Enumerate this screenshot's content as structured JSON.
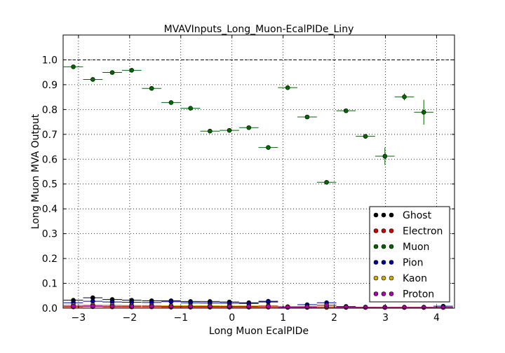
{
  "chart_data": {
    "type": "scatter",
    "title": "MVAVInputs_Long_Muon-EcalPIDe_Liny",
    "xlabel": "Long Muon EcalPIDe",
    "ylabel": "Long Muon MVA Output",
    "xlim": [
      -3.3,
      4.35
    ],
    "ylim": [
      0.0,
      1.1
    ],
    "xticks": [
      -3,
      -2,
      -1,
      0,
      1,
      2,
      3,
      4
    ],
    "xtick_labels": [
      "−3",
      "−2",
      "−1",
      "0",
      "1",
      "2",
      "3",
      "4"
    ],
    "yticks": [
      0.0,
      0.1,
      0.2,
      0.3,
      0.4,
      0.5,
      0.6,
      0.7,
      0.8,
      0.9,
      1.0
    ],
    "ytick_labels": [
      "0.0",
      "0.1",
      "0.2",
      "0.3",
      "0.4",
      "0.5",
      "0.6",
      "0.7",
      "0.8",
      "0.9",
      "1.0"
    ],
    "grid": true,
    "reference_line_y": 1.0,
    "legend_position": "lower-right",
    "bin_halfwidth": 0.19,
    "series": [
      {
        "name": "Ghost",
        "color": "#000000",
        "x": [
          -3.1,
          -2.72,
          -2.34,
          -1.96,
          -1.57,
          -1.19,
          -0.81,
          -0.43,
          -0.05,
          0.33,
          0.71
        ],
        "y": [
          0.032,
          0.042,
          0.035,
          0.032,
          0.03,
          0.03,
          0.027,
          0.027,
          0.025,
          0.022,
          0.025
        ]
      },
      {
        "name": "Electron",
        "color": "#cc0000",
        "x": [
          -3.1,
          -2.72,
          -2.34,
          -1.96,
          -1.57,
          -1.19,
          -0.81,
          -0.43,
          -0.05,
          0.33,
          0.71,
          1.09,
          1.47,
          1.85,
          2.23,
          2.61,
          2.99,
          3.37,
          3.75,
          4.13
        ],
        "y": [
          0.005,
          0.006,
          0.005,
          0.005,
          0.005,
          0.004,
          0.004,
          0.004,
          0.004,
          0.004,
          0.004,
          0.003,
          0.003,
          0.003,
          0.003,
          0.003,
          0.003,
          0.003,
          0.003,
          0.003
        ]
      },
      {
        "name": "Muon",
        "color": "#006600",
        "x": [
          -3.1,
          -2.72,
          -2.34,
          -1.96,
          -1.57,
          -1.19,
          -0.81,
          -0.43,
          -0.05,
          0.33,
          0.71,
          1.09,
          1.47,
          1.85,
          2.23,
          2.61,
          2.99,
          3.37,
          3.75
        ],
        "y": [
          0.972,
          0.921,
          0.949,
          0.958,
          0.885,
          0.828,
          0.805,
          0.713,
          0.716,
          0.727,
          0.647,
          0.888,
          0.77,
          0.507,
          0.795,
          0.692,
          0.612,
          0.851,
          0.789
        ],
        "yerr": [
          0.003,
          0.003,
          0.003,
          0.003,
          0.003,
          0.003,
          0.003,
          0.003,
          0.003,
          0.003,
          0.004,
          0.004,
          0.005,
          0.005,
          0.005,
          0.006,
          0.035,
          0.014,
          0.05
        ]
      },
      {
        "name": "Pion",
        "color": "#000099",
        "x": [
          -3.1,
          -2.72,
          -2.34,
          -1.96,
          -1.57,
          -1.19,
          -0.81,
          -0.43,
          -0.05,
          0.33,
          0.71,
          1.09,
          1.47,
          1.85,
          2.23,
          2.61,
          2.99,
          3.37,
          3.75,
          4.13
        ],
        "y": [
          0.022,
          0.028,
          0.025,
          0.024,
          0.023,
          0.026,
          0.022,
          0.021,
          0.02,
          0.019,
          0.028,
          0.006,
          0.014,
          0.022,
          0.007,
          0.004,
          0.003,
          0.003,
          0.003,
          0.008
        ]
      },
      {
        "name": "Kaon",
        "color": "#ccaa00",
        "x": [
          -3.1,
          -2.72,
          -2.34,
          -1.96,
          -1.57,
          -1.19,
          -0.81,
          -0.43,
          -0.05,
          0.33,
          0.71,
          1.09,
          1.47,
          1.85,
          2.23,
          2.61,
          2.99,
          3.37,
          3.75,
          4.13
        ],
        "y": [
          0.012,
          0.013,
          0.012,
          0.011,
          0.011,
          0.01,
          0.01,
          0.01,
          0.009,
          0.009,
          0.01,
          0.005,
          0.007,
          0.008,
          0.005,
          0.004,
          0.004,
          0.004,
          0.004,
          0.004
        ]
      },
      {
        "name": "Proton",
        "color": "#aa00aa",
        "x": [
          -3.1,
          -2.72,
          -2.34,
          -1.96,
          -1.57,
          -1.19,
          -0.81,
          -0.43,
          -0.05,
          0.33,
          0.71,
          1.09,
          1.47,
          1.85,
          2.23,
          2.61,
          2.99,
          3.37,
          3.75,
          4.13
        ],
        "y": [
          0.008,
          0.009,
          0.008,
          0.008,
          0.008,
          0.007,
          0.007,
          0.007,
          0.007,
          0.007,
          0.008,
          0.004,
          0.005,
          0.012,
          0.004,
          0.003,
          0.003,
          0.003,
          0.003,
          0.003
        ]
      }
    ]
  }
}
